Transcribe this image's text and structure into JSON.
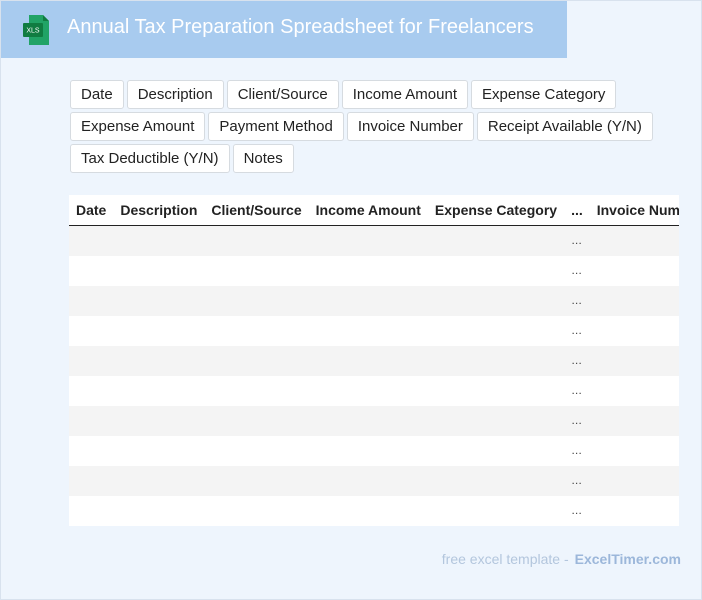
{
  "header": {
    "icon_label": "XLS",
    "title": "Annual Tax Preparation Spreadsheet for Freelancers"
  },
  "tags": [
    "Date",
    "Description",
    "Client/Source",
    "Income Amount",
    "Expense Category",
    "Expense Amount",
    "Payment Method",
    "Invoice Number",
    "Receipt Available (Y/N)",
    "Tax Deductible (Y/N)",
    "Notes"
  ],
  "table": {
    "columns": [
      "Date",
      "Description",
      "Client/Source",
      "Income Amount",
      "Expense Category",
      "...",
      "Invoice Number"
    ],
    "rows": [
      [
        "…"
      ],
      [
        "…"
      ],
      [
        "…"
      ],
      [
        "…"
      ],
      [
        "…"
      ],
      [
        "…"
      ],
      [
        "…"
      ],
      [
        "…"
      ],
      [
        "…"
      ],
      [
        "…"
      ]
    ]
  },
  "footer": {
    "text": "free excel template -",
    "brand": "ExcelTimer.com"
  }
}
